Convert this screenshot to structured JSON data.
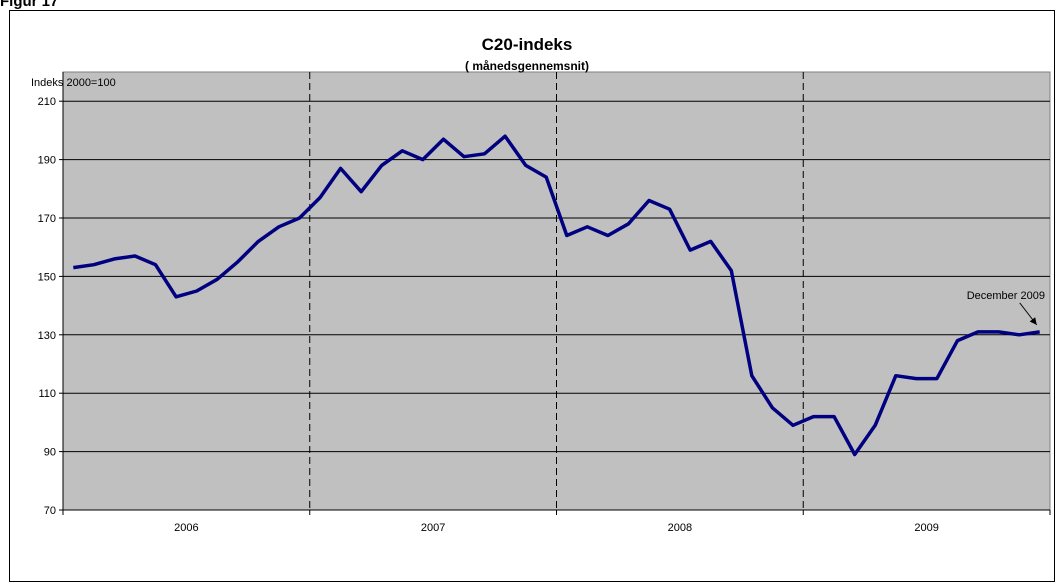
{
  "figure_label": "Figur 17",
  "chart_data": {
    "type": "line",
    "title": "C20-indeks",
    "subtitle": "( månedsgennemsnit)",
    "ylabel": "Indeks 2000=100",
    "xlabel": "",
    "ylim": [
      70,
      220
    ],
    "yticks": [
      70,
      90,
      110,
      130,
      150,
      170,
      190,
      210
    ],
    "categories": [
      "2006",
      "2007",
      "2008",
      "2009"
    ],
    "grid": true,
    "year_separators": "dashed",
    "colors": {
      "line": "#000080",
      "plot_bg": "#c0c0c0"
    },
    "annotation": {
      "text": "December 2009",
      "target_month": "2009-12"
    },
    "series": [
      {
        "x": [
          "2006-01",
          "2006-02",
          "2006-03",
          "2006-04",
          "2006-05",
          "2006-06",
          "2006-07",
          "2006-08",
          "2006-09",
          "2006-10",
          "2006-11",
          "2006-12",
          "2007-01",
          "2007-02",
          "2007-03",
          "2007-04",
          "2007-05",
          "2007-06",
          "2007-07",
          "2007-08",
          "2007-09",
          "2007-10",
          "2007-11",
          "2007-12",
          "2008-01",
          "2008-02",
          "2008-03",
          "2008-04",
          "2008-05",
          "2008-06",
          "2008-07",
          "2008-08",
          "2008-09",
          "2008-10",
          "2008-11",
          "2008-12",
          "2009-01",
          "2009-02",
          "2009-03",
          "2009-04",
          "2009-05",
          "2009-06",
          "2009-07",
          "2009-08",
          "2009-09",
          "2009-10",
          "2009-11",
          "2009-12"
        ],
        "values": [
          153,
          154,
          156,
          157,
          154,
          143,
          145,
          149,
          155,
          162,
          167,
          170,
          177,
          187,
          179,
          188,
          193,
          190,
          197,
          191,
          192,
          198,
          188,
          184,
          164,
          167,
          164,
          168,
          176,
          173,
          159,
          162,
          152,
          116,
          105,
          99,
          102,
          102,
          89,
          99,
          116,
          115,
          115,
          128,
          131,
          131,
          130,
          131
        ]
      }
    ]
  }
}
